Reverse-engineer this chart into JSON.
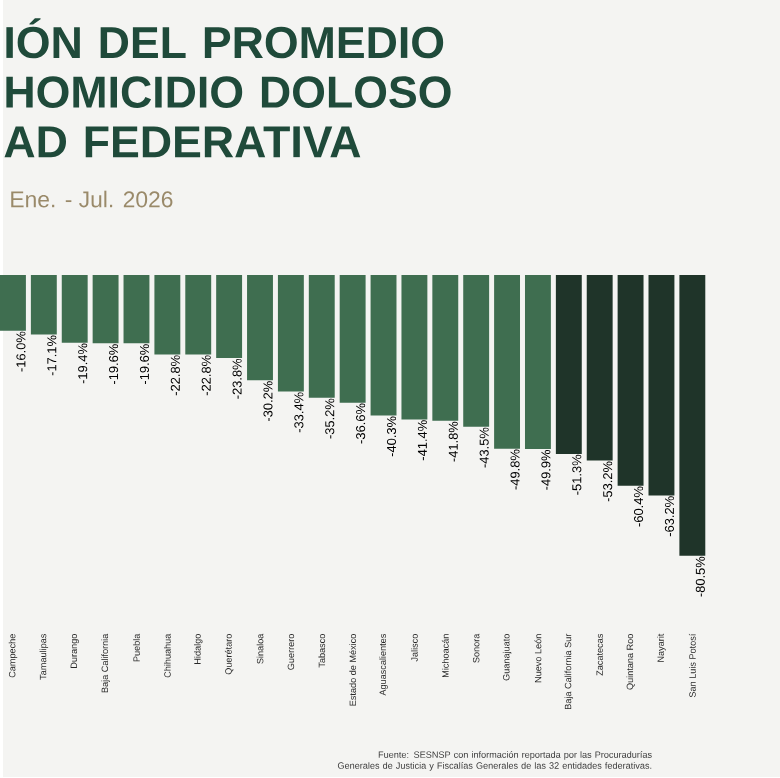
{
  "chart_data": {
    "type": "bar",
    "title": "IÓN DEL PROMEDIO HOMICIDIO DOLOSO AD FEDERATIVA",
    "subtitle": "Ene. - Jul. 2026",
    "categories": [
      "Campeche",
      "Tamaulipas",
      "Durango",
      "Baja California",
      "Puebla",
      "Chihuahua",
      "Hidalgo",
      "Querétaro",
      "Sinaloa",
      "Guerrero",
      "Tabasco",
      "Estado de México",
      "Aguascalientes",
      "Jalisco",
      "Michoacán",
      "Sonora",
      "Guanajuato",
      "Nuevo León",
      "Baja California Sur",
      "Zacatecas",
      "Quintana Roo",
      "Nayarit",
      "San Luis Potosí"
    ],
    "values": [
      -16.0,
      -17.1,
      -19.4,
      -19.6,
      -19.6,
      -22.8,
      -22.8,
      -23.8,
      -30.2,
      -33.4,
      -35.2,
      -36.6,
      -40.3,
      -41.4,
      -41.8,
      -43.5,
      -49.8,
      -49.9,
      -51.3,
      -53.2,
      -60.4,
      -63.2,
      -80.5
    ],
    "value_labels": [
      "-16.0%",
      "-17.1%",
      "-19.4%",
      "-19.6%",
      "-19.6%",
      "-22.8%",
      "-22.8%",
      "-23.8%",
      "-30.2%",
      "-33.4%",
      "-35.2%",
      "-36.6%",
      "-40.3%",
      "-41.4%",
      "-41.8%",
      "-43.5%",
      "-49.8%",
      "-49.9%",
      "-51.3%",
      "-53.2%",
      "-60.4%",
      "-63.2%",
      "-80.5%"
    ],
    "colors": [
      "#3f6e50",
      "#3f6e50",
      "#3f6e50",
      "#3f6e50",
      "#3f6e50",
      "#3f6e50",
      "#3f6e50",
      "#3f6e50",
      "#3f6e50",
      "#3f6e50",
      "#3f6e50",
      "#3f6e50",
      "#3f6e50",
      "#3f6e50",
      "#3f6e50",
      "#3f6e50",
      "#3f6e50",
      "#3f6e50",
      "#1f3429",
      "#1f3429",
      "#1f3429",
      "#1f3429",
      "#1f3429"
    ],
    "annotations": [
      "Fuente: SESNSP con información reportada por las Procuradurías Generales de Justicia y Fiscalías Generales de las 32 entidades federativas."
    ]
  }
}
